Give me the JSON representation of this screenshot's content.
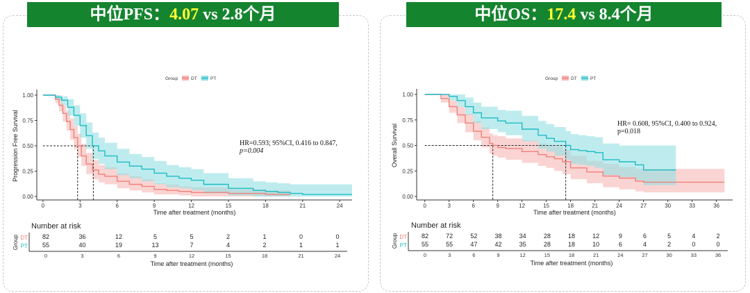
{
  "banners": [
    {
      "prefix": "中位PFS：",
      "highlight": "4.07",
      "suffix": " vs 2.8个月"
    },
    {
      "prefix": "中位OS：",
      "highlight": "17.4",
      "suffix": " vs 8.4个月"
    }
  ],
  "colors": {
    "DT": "#f07f79",
    "PT": "#1cbcc4",
    "DT_band": "#f7b7b4",
    "PT_band": "#93dfe3",
    "banner": "#15842f",
    "banner_highlight": "#ffff33"
  },
  "chart_data": [
    {
      "type": "line",
      "subtype": "kaplan-meier",
      "ylabel": "Progression Free Survival",
      "xlabel": "Time after treatment (months)",
      "xlim": [
        -0.5,
        25
      ],
      "ylim": [
        0,
        1
      ],
      "x_ticks": [
        0,
        3,
        6,
        9,
        12,
        15,
        18,
        21,
        24
      ],
      "y_ticks": [
        0.0,
        0.25,
        0.5,
        0.75,
        1.0
      ],
      "y_tick_labels": [
        "0.00",
        "0.25",
        "0.50",
        "0.75",
        "1.00"
      ],
      "legend": {
        "title": "Group",
        "entries": [
          "DT",
          "PT"
        ],
        "position": "top"
      },
      "annotation": {
        "lines": [
          "HR=0.593; 95%CI, 0.416 to 0.847,",
          "p=0.004"
        ],
        "p_italic": true
      },
      "median": {
        "y": 0.5,
        "x_values": [
          2.8,
          4.07
        ]
      },
      "series": [
        {
          "name": "DT",
          "x": [
            0,
            0.5,
            1,
            1.3,
            1.6,
            1.9,
            2.2,
            2.5,
            2.8,
            3.1,
            3.5,
            4,
            4.5,
            5,
            6,
            7,
            8,
            9,
            10,
            11,
            12,
            15,
            18,
            20
          ],
          "y": [
            1,
            1,
            0.96,
            0.9,
            0.82,
            0.74,
            0.66,
            0.58,
            0.5,
            0.4,
            0.32,
            0.26,
            0.22,
            0.2,
            0.15,
            0.12,
            0.1,
            0.07,
            0.06,
            0.05,
            0.04,
            0.03,
            0.02,
            0.02
          ],
          "lower": [
            1,
            1,
            0.92,
            0.84,
            0.74,
            0.65,
            0.56,
            0.47,
            0.39,
            0.3,
            0.22,
            0.17,
            0.14,
            0.12,
            0.08,
            0.06,
            0.04,
            0.02,
            0.02,
            0.01,
            0,
            0,
            0,
            0
          ],
          "upper": [
            1,
            1,
            1,
            0.97,
            0.9,
            0.84,
            0.77,
            0.7,
            0.62,
            0.52,
            0.43,
            0.36,
            0.31,
            0.29,
            0.23,
            0.2,
            0.17,
            0.13,
            0.12,
            0.1,
            0.09,
            0.07,
            0.06,
            0.06
          ]
        },
        {
          "name": "PT",
          "x": [
            0,
            0.5,
            1,
            1.5,
            2,
            2.5,
            3,
            3.5,
            4,
            4.5,
            5,
            6,
            7,
            8,
            9,
            10,
            11,
            12,
            13,
            15,
            17,
            18,
            19,
            20,
            21,
            24,
            25
          ],
          "y": [
            1,
            1,
            0.98,
            0.95,
            0.88,
            0.8,
            0.7,
            0.6,
            0.5,
            0.45,
            0.4,
            0.34,
            0.3,
            0.27,
            0.23,
            0.2,
            0.18,
            0.16,
            0.12,
            0.08,
            0.06,
            0.05,
            0.04,
            0.03,
            0.02,
            0.02,
            0.02
          ],
          "lower": [
            1,
            1,
            0.95,
            0.9,
            0.8,
            0.7,
            0.58,
            0.47,
            0.37,
            0.32,
            0.27,
            0.21,
            0.18,
            0.15,
            0.12,
            0.09,
            0.08,
            0.06,
            0.03,
            0.01,
            0,
            0,
            0,
            0,
            0,
            0,
            0
          ],
          "upper": [
            1,
            1,
            1,
            0.99,
            0.96,
            0.9,
            0.82,
            0.73,
            0.63,
            0.58,
            0.53,
            0.47,
            0.42,
            0.39,
            0.35,
            0.31,
            0.29,
            0.27,
            0.23,
            0.18,
            0.15,
            0.14,
            0.13,
            0.12,
            0.12,
            0.12,
            0.12
          ]
        }
      ],
      "risk_table": {
        "title": "Number at risk",
        "row_axis_label": "Group",
        "times": [
          0,
          3,
          6,
          9,
          12,
          15,
          18,
          21,
          24
        ],
        "rows": [
          {
            "group": "DT",
            "values": [
              "82",
              "36",
              "12",
              "5",
              "5",
              "2",
              "1",
              "0",
              "0"
            ]
          },
          {
            "group": "PT",
            "values": [
              "55",
              "40",
              "19",
              "13",
              "7",
              "4",
              "2",
              "1",
              "1"
            ]
          }
        ],
        "xlabel": "Time after treatment (months)"
      }
    },
    {
      "type": "line",
      "subtype": "kaplan-meier",
      "ylabel": "Overall Survival",
      "xlabel": "Time after treatment (months)",
      "xlim": [
        -1,
        38
      ],
      "ylim": [
        0,
        1
      ],
      "x_ticks": [
        0,
        3,
        6,
        9,
        12,
        15,
        18,
        21,
        24,
        27,
        30,
        33,
        36
      ],
      "y_ticks": [
        0.0,
        0.25,
        0.5,
        0.75,
        1.0
      ],
      "y_tick_labels": [
        "0.00",
        "0.25",
        "0.50",
        "0.75",
        "1.00"
      ],
      "legend": {
        "title": "Group",
        "entries": [
          "DT",
          "PT"
        ],
        "position": "top"
      },
      "annotation": {
        "lines": [
          "HR= 0.608, 95%CI, 0.400 to 0.924,",
          "p=0.018"
        ],
        "p_italic": false
      },
      "median": {
        "y": 0.5,
        "x_values": [
          8.4,
          17.4
        ]
      },
      "series": [
        {
          "name": "DT",
          "x": [
            0,
            1,
            2,
            3,
            4,
            5,
            6,
            7,
            8,
            8.4,
            9,
            10,
            12,
            14,
            15,
            16,
            17,
            18,
            20,
            22,
            24,
            26,
            27,
            28,
            30,
            34,
            37
          ],
          "y": [
            1,
            1,
            0.96,
            0.88,
            0.8,
            0.72,
            0.64,
            0.58,
            0.52,
            0.5,
            0.48,
            0.47,
            0.44,
            0.41,
            0.39,
            0.37,
            0.34,
            0.28,
            0.24,
            0.2,
            0.18,
            0.15,
            0.14,
            0.14,
            0.14,
            0.14,
            0.14
          ],
          "lower": [
            1,
            1,
            0.92,
            0.82,
            0.72,
            0.63,
            0.55,
            0.48,
            0.42,
            0.4,
            0.38,
            0.36,
            0.33,
            0.3,
            0.28,
            0.25,
            0.22,
            0.17,
            0.13,
            0.09,
            0.07,
            0.05,
            0.04,
            0.04,
            0.04,
            0.04,
            0.04
          ],
          "upper": [
            1,
            1,
            1,
            0.94,
            0.88,
            0.81,
            0.74,
            0.68,
            0.62,
            0.6,
            0.59,
            0.57,
            0.55,
            0.52,
            0.5,
            0.49,
            0.46,
            0.4,
            0.35,
            0.32,
            0.29,
            0.27,
            0.27,
            0.27,
            0.27,
            0.27,
            0.27
          ]
        },
        {
          "name": "PT",
          "x": [
            0,
            1,
            3,
            4,
            5,
            6,
            7,
            9,
            10,
            12,
            14,
            15,
            16,
            17.4,
            18,
            19,
            20,
            21,
            22,
            24,
            26,
            27,
            28,
            30,
            31
          ],
          "y": [
            1,
            1,
            0.98,
            0.94,
            0.88,
            0.82,
            0.77,
            0.74,
            0.72,
            0.66,
            0.6,
            0.57,
            0.54,
            0.5,
            0.46,
            0.45,
            0.44,
            0.43,
            0.36,
            0.34,
            0.31,
            0.26,
            0.26,
            0.26,
            0.26
          ],
          "lower": [
            1,
            1,
            0.94,
            0.88,
            0.8,
            0.72,
            0.66,
            0.63,
            0.6,
            0.54,
            0.47,
            0.44,
            0.4,
            0.36,
            0.32,
            0.31,
            0.3,
            0.28,
            0.21,
            0.19,
            0.16,
            0.11,
            0.11,
            0.11,
            0.11
          ],
          "upper": [
            1,
            1,
            1,
            1,
            0.97,
            0.92,
            0.88,
            0.85,
            0.84,
            0.79,
            0.74,
            0.71,
            0.68,
            0.64,
            0.61,
            0.6,
            0.59,
            0.58,
            0.52,
            0.5,
            0.5,
            0.5,
            0.5,
            0.5,
            0.5
          ]
        }
      ],
      "risk_table": {
        "title": "Number at risk",
        "row_axis_label": "Group",
        "times": [
          0,
          3,
          6,
          9,
          12,
          15,
          18,
          21,
          24,
          27,
          30,
          33,
          36
        ],
        "rows": [
          {
            "group": "DT",
            "values": [
              "82",
              "72",
              "52",
              "38",
              "34",
              "28",
              "18",
              "12",
              "9",
              "6",
              "5",
              "4",
              "2"
            ]
          },
          {
            "group": "PT",
            "values": [
              "55",
              "55",
              "47",
              "42",
              "35",
              "28",
              "18",
              "10",
              "6",
              "4",
              "2",
              "0",
              "0"
            ]
          }
        ],
        "xlabel": "Time after treatment (months)"
      }
    }
  ]
}
